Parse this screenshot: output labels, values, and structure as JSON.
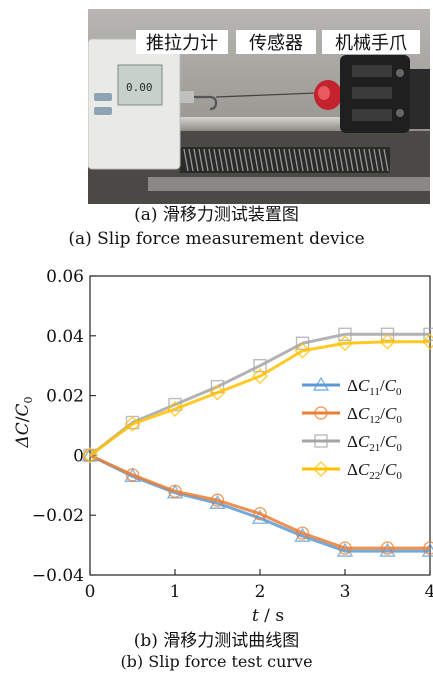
{
  "figure": {
    "photo": {
      "labels": [
        "推拉力计",
        "传感器",
        "机械手爪"
      ],
      "gauge_readout": "0.00"
    },
    "caption_a_cn": "(a)  滑移力测试装置图",
    "caption_a_en": "(a)  Slip force measurement device",
    "caption_b_cn": "(b)  滑移力测试曲线图",
    "caption_b_en": "(b)  Slip force test curve"
  },
  "chart_data": {
    "type": "line",
    "xlabel_parts": [
      "t",
      " / s"
    ],
    "ylabel_parts": [
      "ΔC",
      "/",
      "C",
      "0"
    ],
    "xlim": [
      0,
      4
    ],
    "ylim": [
      -0.04,
      0.06
    ],
    "xticks": [
      "0",
      "1",
      "2",
      "3",
      "4"
    ],
    "yticks": [
      "−0.04",
      "−0.02",
      "0",
      "0.02",
      "0.04",
      "0.06"
    ],
    "ytick_values": [
      -0.04,
      -0.02,
      0,
      0.02,
      0.04,
      0.06
    ],
    "grid": false,
    "legend_position": "right",
    "x": [
      0,
      0.5,
      1,
      1.5,
      2,
      2.5,
      3,
      3.5,
      4
    ],
    "series": [
      {
        "name": "ΔC11/C0",
        "sub": "11",
        "color": "#5b9bd5",
        "marker": "triangle",
        "values": [
          0,
          -0.007,
          -0.0125,
          -0.016,
          -0.021,
          -0.027,
          -0.032,
          -0.032,
          -0.032
        ]
      },
      {
        "name": "ΔC12/C0",
        "sub": "12",
        "color": "#ed7d31",
        "marker": "circle",
        "values": [
          0,
          -0.0065,
          -0.012,
          -0.015,
          -0.0195,
          -0.026,
          -0.031,
          -0.031,
          -0.031
        ]
      },
      {
        "name": "ΔC21/C0",
        "sub": "21",
        "color": "#a5a5a5",
        "marker": "square",
        "values": [
          0,
          0.011,
          0.017,
          0.023,
          0.03,
          0.0375,
          0.0405,
          0.0405,
          0.0405
        ]
      },
      {
        "name": "ΔC22/C0",
        "sub": "22",
        "color": "#ffc000",
        "marker": "diamond",
        "values": [
          0,
          0.0105,
          0.0155,
          0.021,
          0.0265,
          0.035,
          0.0375,
          0.038,
          0.038
        ]
      }
    ]
  }
}
